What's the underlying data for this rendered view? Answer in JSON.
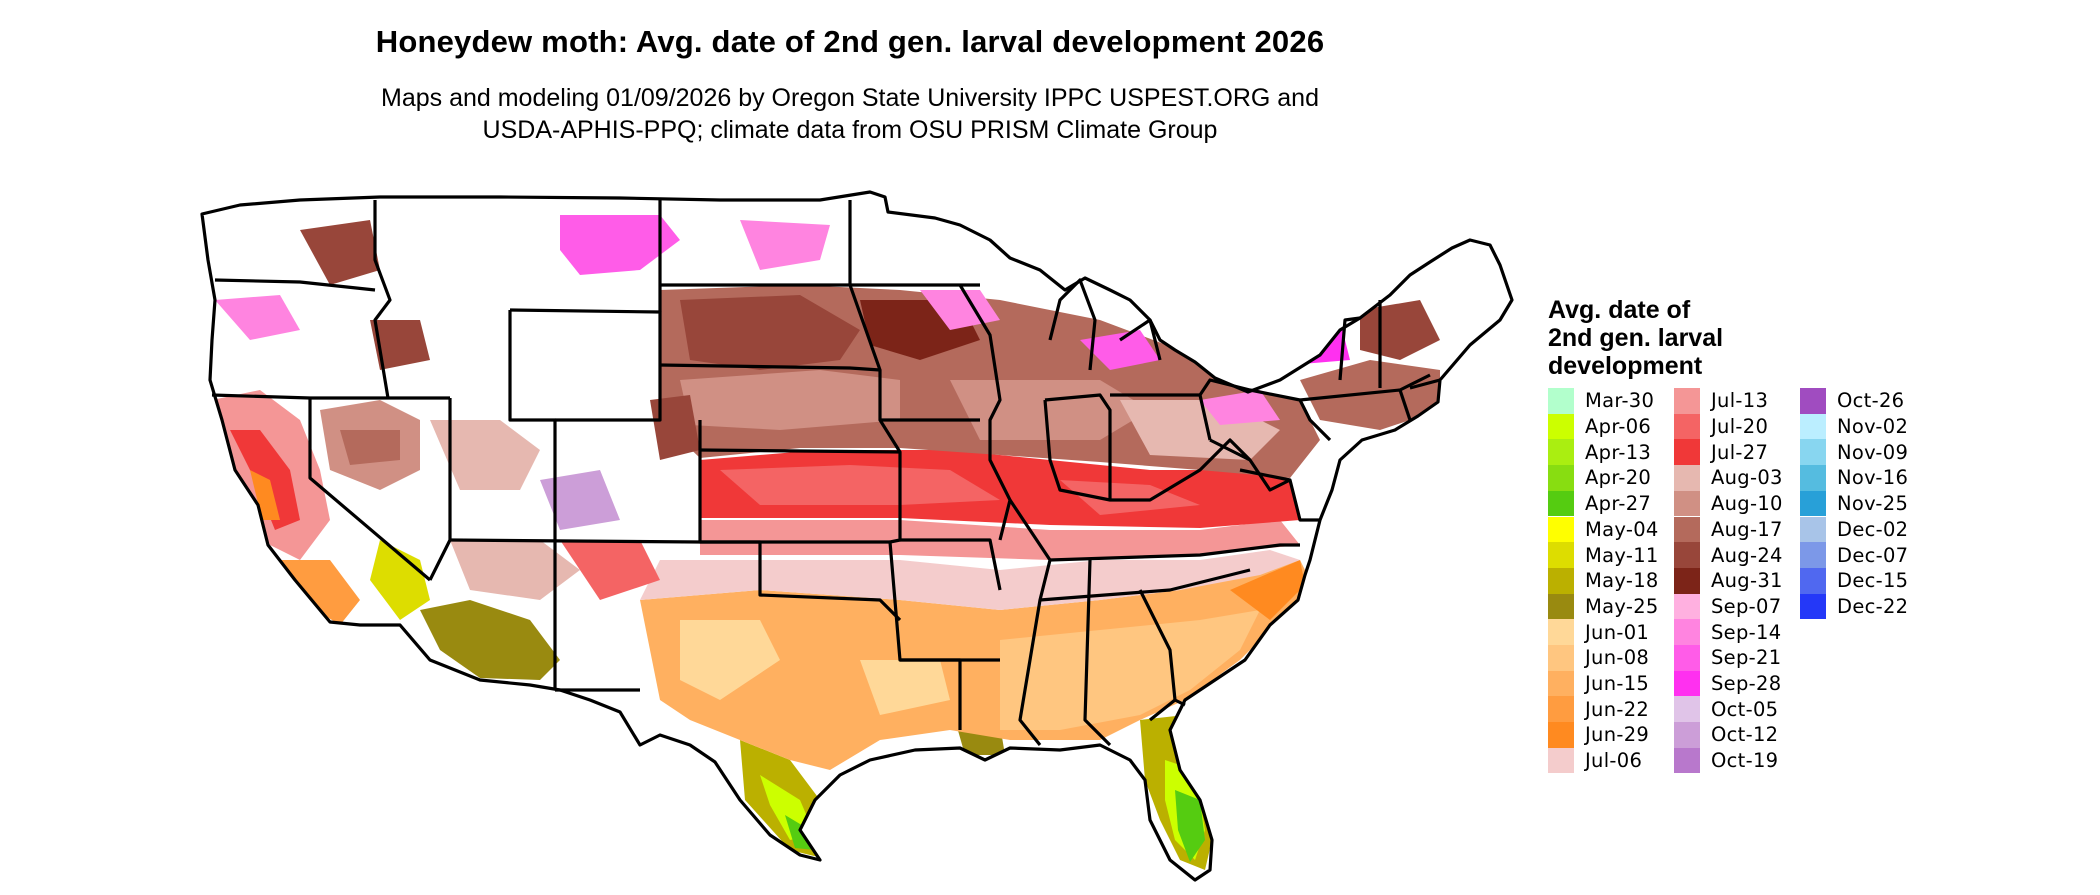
{
  "title": "Honeydew moth: Avg. date of 2nd gen. larval development 2026",
  "subtitle_line1": "Maps and modeling 01/09/2026 by Oregon State University IPPC USPEST.ORG and",
  "subtitle_line2": "USDA-APHIS-PPQ; climate data from OSU PRISM Climate Group",
  "legend": {
    "title_lines": [
      "Avg. date of",
      "2nd gen. larval",
      "development"
    ],
    "columns": [
      [
        {
          "label": "Mar-30",
          "color": "#b2ffcc"
        },
        {
          "label": "Apr-06",
          "color": "#ccff00"
        },
        {
          "label": "Apr-13",
          "color": "#aaee11"
        },
        {
          "label": "Apr-20",
          "color": "#88dd11"
        },
        {
          "label": "Apr-27",
          "color": "#55cc11"
        },
        {
          "label": "May-04",
          "color": "#ffff00"
        },
        {
          "label": "May-11",
          "color": "#dddd00"
        },
        {
          "label": "May-18",
          "color": "#bbb000"
        },
        {
          "label": "May-25",
          "color": "#998a10"
        },
        {
          "label": "Jun-01",
          "color": "#ffd898"
        },
        {
          "label": "Jun-08",
          "color": "#ffc680"
        },
        {
          "label": "Jun-15",
          "color": "#ffb060"
        },
        {
          "label": "Jun-22",
          "color": "#ff9c40"
        },
        {
          "label": "Jun-29",
          "color": "#ff8a20"
        },
        {
          "label": "Jul-06",
          "color": "#f4cccc"
        }
      ],
      [
        {
          "label": "Jul-13",
          "color": "#f49696"
        },
        {
          "label": "Jul-20",
          "color": "#f46464"
        },
        {
          "label": "Jul-27",
          "color": "#f03838"
        },
        {
          "label": "Aug-03",
          "color": "#e6b8b0"
        },
        {
          "label": "Aug-10",
          "color": "#d09084"
        },
        {
          "label": "Aug-17",
          "color": "#b46a5c"
        },
        {
          "label": "Aug-24",
          "color": "#98463a"
        },
        {
          "label": "Aug-31",
          "color": "#7c2418"
        },
        {
          "label": "Sep-07",
          "color": "#ffb0e0"
        },
        {
          "label": "Sep-14",
          "color": "#ff84e0"
        },
        {
          "label": "Sep-21",
          "color": "#ff5ce8"
        },
        {
          "label": "Sep-28",
          "color": "#ff30f0"
        },
        {
          "label": "Oct-05",
          "color": "#e0c4e8"
        },
        {
          "label": "Oct-12",
          "color": "#cc9ed8"
        },
        {
          "label": "Oct-19",
          "color": "#b878cc"
        }
      ],
      [
        {
          "label": "Oct-26",
          "color": "#a04cc0"
        },
        {
          "label": "Nov-02",
          "color": "#bbeeff"
        },
        {
          "label": "Nov-09",
          "color": "#88d6f0"
        },
        {
          "label": "Nov-16",
          "color": "#55bce0"
        },
        {
          "label": "Nov-25",
          "color": "#28a0d8"
        },
        {
          "label": "Dec-02",
          "color": "#a8c4e8"
        },
        {
          "label": "Dec-07",
          "color": "#7c98e8"
        },
        {
          "label": "Dec-15",
          "color": "#5068f0"
        },
        {
          "label": "Dec-22",
          "color": "#2438f8"
        }
      ]
    ]
  }
}
